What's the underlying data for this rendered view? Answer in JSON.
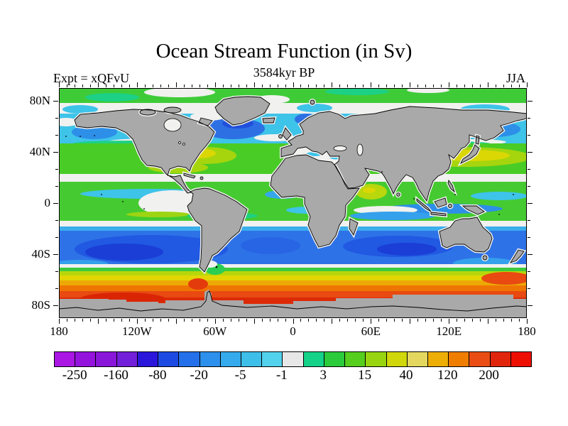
{
  "title": "Ocean Stream Function (in Sv)",
  "subtitle": "3584kyr BP",
  "experiment_label": "Expt = xQFvU",
  "season_label": "JJA",
  "chart_data": {
    "type": "heatmap",
    "projection": "equirectangular world map, lon -180..180 (centered on 0), lat -90..90",
    "title": "Ocean Stream Function (in Sv)",
    "subtitle": "3584kyr BP",
    "annotations": [
      "Expt = xQFvU",
      "JJA"
    ],
    "units": "Sv",
    "colorbar": {
      "orientation": "horizontal",
      "tick_labels": [
        "-250",
        "-160",
        "-80",
        "-20",
        "-5",
        "-1",
        "3",
        "15",
        "40",
        "120",
        "200"
      ],
      "note": "labels sit under every second segment boundary; 23 discrete color segments",
      "segment_colors": [
        "#AA16E4",
        "#9414DE",
        "#8A16DA",
        "#7320DA",
        "#2B16DC",
        "#1E4AE4",
        "#2470EA",
        "#2C90EC",
        "#35AAEC",
        "#3DBFEA",
        "#52D2EC",
        "#E7E7E7",
        "#14D288",
        "#2BCB3C",
        "#55CE1E",
        "#98D410",
        "#D0D70A",
        "#E3D75F",
        "#EDAE06",
        "#EF7D00",
        "#E94D13",
        "#E1250C",
        "#ED0E04"
      ]
    },
    "x_axis": {
      "tick_labels": [
        {
          "label": "180",
          "lon": -180
        },
        {
          "label": "120W",
          "lon": -120
        },
        {
          "label": "60W",
          "lon": -60
        },
        {
          "label": "0",
          "lon": 0
        },
        {
          "label": "60E",
          "lon": 60
        },
        {
          "label": "120E",
          "lon": 120
        },
        {
          "label": "180",
          "lon": 180
        }
      ],
      "minor_step_deg": 6,
      "major_step_deg": 30,
      "range_deg": [
        -180,
        180
      ]
    },
    "y_axis": {
      "tick_labels": [
        {
          "label": "80N",
          "lat": 80
        },
        {
          "label": "40N",
          "lat": 40
        },
        {
          "label": "0",
          "lat": 0
        },
        {
          "label": "40S",
          "lat": -40
        },
        {
          "label": "80S",
          "lat": -80
        }
      ],
      "minor_step_deg": 13.333,
      "major_step_deg": 40,
      "range_deg": [
        -90,
        90
      ]
    },
    "map_features": {
      "land_color": "#A9A9A9",
      "coastline_color": "#000000",
      "zero_band_color": "#F1F1EF",
      "regions": [
        {
          "region": "Arctic band ~80-90N",
          "approx_value_sv": "3 to 15 (green)"
        },
        {
          "region": "Subpolar N Atlantic / N Pacific 50-70N",
          "approx_value_sv": "-5 to -20 (cyan/blue)"
        },
        {
          "region": "Northern subtropical gyres 25-45N",
          "approx_value_sv": "15 to 40 (green/yellow-green)"
        },
        {
          "region": "Gulf Stream (W Atlantic ~30N)",
          "approx_value_sv": "40 to 120 (yellow/gold)"
        },
        {
          "region": "Kuroshio (E of Japan ~35N)",
          "approx_value_sv": "120 to 200 (gold/orange)"
        },
        {
          "region": "Near-zero white band ~20N and ~15S",
          "approx_value_sv": "-1 to 3"
        },
        {
          "region": "Tropics",
          "approx_value_sv": "3 to 15 with cyan streaks; Arabian Sea 40 (yellow-green)"
        },
        {
          "region": "Southern subtropical gyres 20-45S",
          "approx_value_sv": "-20 to -160 (blue, dark cores)"
        },
        {
          "region": "Antarctic Circumpolar Current 50-65S",
          "approx_value_sv": "40 to >200 (yellow-orange-red)"
        },
        {
          "region": "Antarctica & shelf mask",
          "approx_value_sv": "land (gray)"
        }
      ]
    }
  }
}
